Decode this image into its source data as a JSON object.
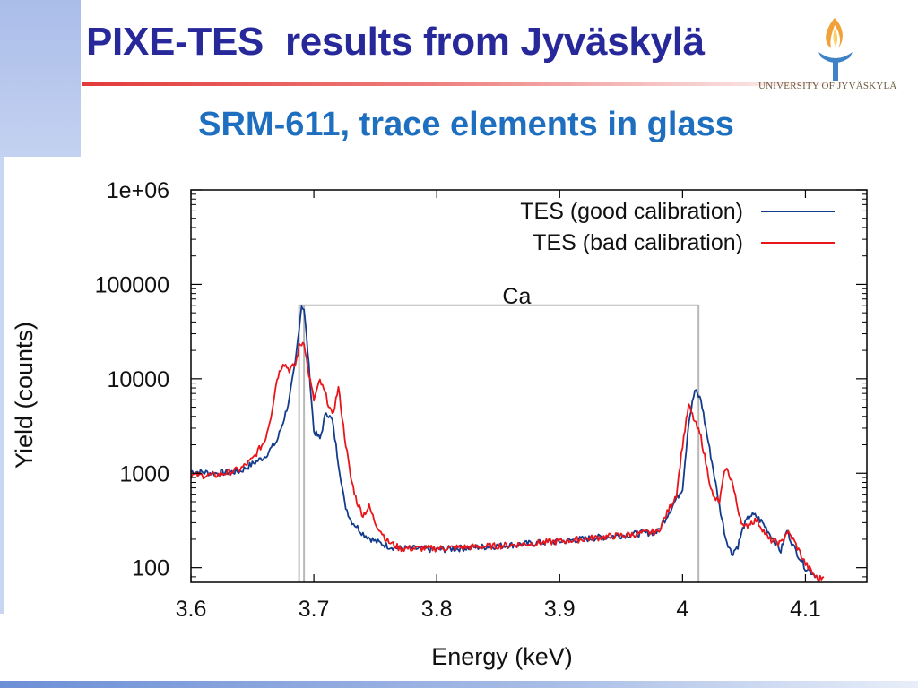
{
  "slide": {
    "title": "PIXE-TES  results from Jyväskylä",
    "subtitle": "SRM-611, trace elements in glass",
    "logo_text": "UNIVERSITY OF JYVÄSKYLÄ"
  },
  "colors": {
    "title": "#27289a",
    "subtitle": "#1f6fc0",
    "accent_rule": "#e23b3b",
    "good_series": "#143c8c",
    "bad_series": "#e8151b",
    "roi_box": "#b8b8b8"
  },
  "chart_data": {
    "type": "line",
    "title": "",
    "xlabel": "Energy (keV)",
    "ylabel": "Yield (counts)",
    "xlim": [
      3.6,
      4.15
    ],
    "ylim": [
      70,
      1000000
    ],
    "yscale": "log",
    "xticks": [
      3.6,
      3.7,
      3.8,
      3.9,
      4.0,
      4.1
    ],
    "xtick_labels": [
      "3.6",
      "3.7",
      "3.8",
      "3.9",
      "4",
      "4.1"
    ],
    "yticks": [
      100,
      1000,
      10000,
      100000,
      1000000
    ],
    "ytick_labels": [
      "100",
      "1000",
      "10000",
      "100000",
      "1e+06"
    ],
    "grid": false,
    "legend_position": "top-right",
    "series": [
      {
        "name": "TES (good calibration)",
        "color": "#143c8c",
        "x": [
          3.6,
          3.62,
          3.64,
          3.66,
          3.67,
          3.675,
          3.68,
          3.685,
          3.688,
          3.69,
          3.692,
          3.695,
          3.7,
          3.705,
          3.71,
          3.715,
          3.72,
          3.725,
          3.73,
          3.74,
          3.75,
          3.76,
          3.77,
          3.78,
          3.8,
          3.85,
          3.9,
          3.95,
          3.98,
          4.0,
          4.005,
          4.01,
          4.015,
          4.02,
          4.025,
          4.03,
          4.035,
          4.04,
          4.045,
          4.05,
          4.055,
          4.06,
          4.065,
          4.07,
          4.08,
          4.085,
          4.09,
          4.1,
          4.11
        ],
        "y": [
          1050,
          1000,
          1050,
          1500,
          2200,
          3500,
          6000,
          15000,
          35000,
          60000,
          55000,
          20000,
          2800,
          2300,
          4500,
          3600,
          1300,
          480,
          320,
          230,
          190,
          170,
          160,
          160,
          155,
          170,
          190,
          220,
          240,
          700,
          3500,
          7500,
          6000,
          2500,
          1100,
          450,
          210,
          140,
          170,
          280,
          360,
          350,
          300,
          240,
          150,
          250,
          170,
          100,
          80
        ]
      },
      {
        "name": "TES (bad calibration)",
        "color": "#e8151b",
        "x": [
          3.6,
          3.62,
          3.64,
          3.65,
          3.66,
          3.665,
          3.67,
          3.675,
          3.68,
          3.685,
          3.688,
          3.692,
          3.695,
          3.7,
          3.705,
          3.71,
          3.715,
          3.72,
          3.725,
          3.73,
          3.735,
          3.74,
          3.745,
          3.75,
          3.76,
          3.77,
          3.78,
          3.8,
          3.85,
          3.9,
          3.95,
          3.98,
          3.995,
          4.0,
          4.005,
          4.01,
          4.015,
          4.02,
          4.025,
          4.03,
          4.035,
          4.04,
          4.045,
          4.05,
          4.055,
          4.06,
          4.065,
          4.07,
          4.08,
          4.085,
          4.09,
          4.1,
          4.11,
          4.115
        ],
        "y": [
          950,
          950,
          1100,
          1400,
          2200,
          4000,
          10000,
          15000,
          12500,
          14000,
          22000,
          25000,
          13000,
          6000,
          9500,
          6500,
          4000,
          8000,
          2500,
          900,
          500,
          360,
          440,
          300,
          190,
          160,
          160,
          160,
          170,
          190,
          220,
          240,
          600,
          2000,
          5200,
          3500,
          2400,
          1100,
          550,
          500,
          1150,
          850,
          420,
          260,
          300,
          320,
          260,
          200,
          180,
          240,
          200,
          110,
          75,
          80
        ]
      }
    ],
    "annotations": [
      {
        "text": "Ca",
        "type": "roi-box",
        "x_lines": [
          3.688,
          3.692
        ],
        "x_end": 4.013,
        "y_top": 60000
      }
    ]
  }
}
